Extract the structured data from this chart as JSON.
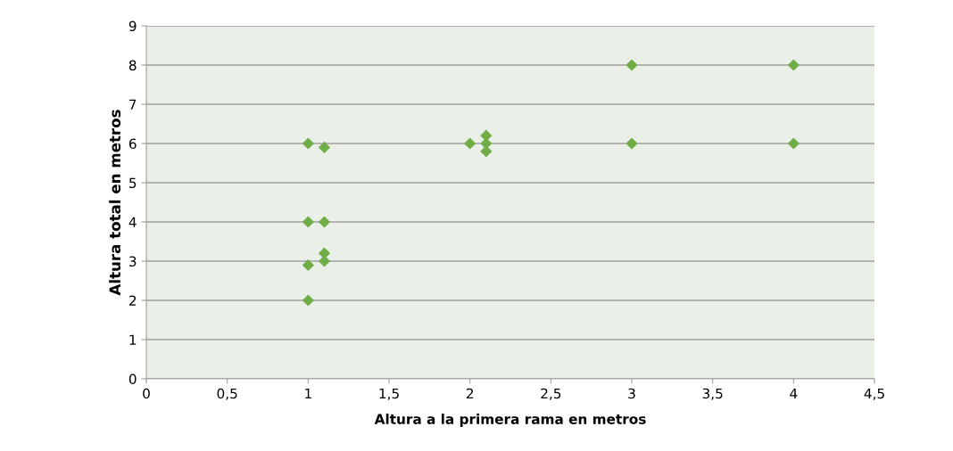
{
  "chart_data": {
    "type": "scatter",
    "xlabel": "Altura a la primera rama en metros",
    "ylabel": "Altura total en metros",
    "x": [
      1,
      1.1,
      1,
      1.1,
      1.1,
      1.1,
      1,
      1,
      2,
      2.1,
      2.1,
      2.1,
      3,
      3,
      4,
      4
    ],
    "series": [
      {
        "color": "#70ad47",
        "values": [
          6,
          5.9,
          4,
          4,
          3.2,
          3,
          2.9,
          2,
          6,
          6.2,
          6,
          5.8,
          8,
          6,
          8,
          6
        ]
      }
    ],
    "xlim": [
      0,
      4.5
    ],
    "ylim": [
      0,
      9
    ],
    "xticks": [
      0,
      {
        "value": 0.5,
        "label": "0,5"
      },
      1,
      {
        "value": 1.5,
        "label": "1,5"
      },
      2,
      {
        "value": 2.5,
        "label": "2,5"
      },
      3,
      {
        "value": 3.5,
        "label": "3,5"
      },
      4,
      {
        "value": 4.5,
        "label": "4,5"
      }
    ],
    "yticks": [
      0,
      1,
      2,
      3,
      4,
      5,
      6,
      7,
      8,
      9
    ],
    "grid": "y",
    "marker": "diamond"
  }
}
